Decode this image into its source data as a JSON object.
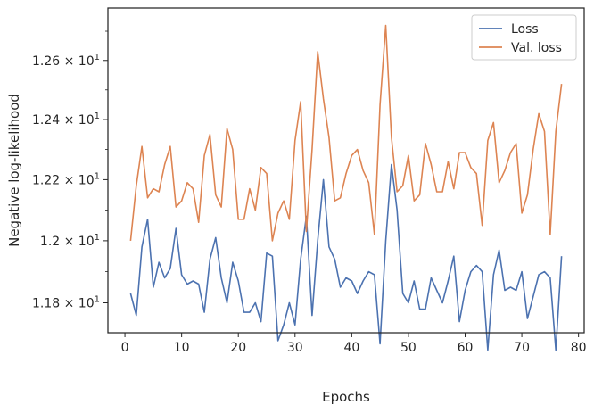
{
  "chart_data": {
    "type": "line",
    "xlabel": "Epochs",
    "ylabel": "Negative log-likelihood",
    "xlim": [
      -3,
      81
    ],
    "ylim": [
      11.705,
      12.78
    ],
    "yscale": "log",
    "grid": false,
    "legend_position": "top-right",
    "x_ticks": [
      0,
      10,
      20,
      30,
      40,
      50,
      60,
      70,
      80
    ],
    "x_tick_labels": [
      "0",
      "10",
      "20",
      "30",
      "40",
      "50",
      "60",
      "70",
      "80"
    ],
    "y_ticks": [
      11.8,
      12.0,
      12.2,
      12.4,
      12.6
    ],
    "y_tick_labels": [
      {
        "mant": "1.18",
        "base": "10",
        "exp": "1"
      },
      {
        "mant": "1.2",
        "base": "10",
        "exp": "1"
      },
      {
        "mant": "1.22",
        "base": "10",
        "exp": "1"
      },
      {
        "mant": "1.24",
        "base": "10",
        "exp": "1"
      },
      {
        "mant": "1.26",
        "base": "10",
        "exp": "1"
      }
    ],
    "x": [
      1,
      2,
      3,
      4,
      5,
      6,
      7,
      8,
      9,
      10,
      11,
      12,
      13,
      14,
      15,
      16,
      17,
      18,
      19,
      20,
      21,
      22,
      23,
      24,
      25,
      26,
      27,
      28,
      29,
      30,
      31,
      32,
      33,
      34,
      35,
      36,
      37,
      38,
      39,
      40,
      41,
      42,
      43,
      44,
      45,
      46,
      47,
      48,
      49,
      50,
      51,
      52,
      53,
      54,
      55,
      56,
      57,
      58,
      59,
      60,
      61,
      62,
      63,
      64,
      65,
      66,
      67,
      68,
      69,
      70,
      71,
      72,
      73,
      74,
      75,
      76,
      77
    ],
    "series": [
      {
        "name": "Loss",
        "color": "#4c72b0",
        "values": [
          11.83,
          11.76,
          11.98,
          12.07,
          11.85,
          11.93,
          11.88,
          11.91,
          12.04,
          11.89,
          11.86,
          11.87,
          11.86,
          11.77,
          11.94,
          12.01,
          11.88,
          11.8,
          11.93,
          11.87,
          11.77,
          11.77,
          11.8,
          11.74,
          11.96,
          11.95,
          11.68,
          11.73,
          11.8,
          11.73,
          11.94,
          12.08,
          11.76,
          12.0,
          12.2,
          11.98,
          11.94,
          11.85,
          11.88,
          11.87,
          11.83,
          11.87,
          11.9,
          11.89,
          11.67,
          12.0,
          12.25,
          12.1,
          11.83,
          11.8,
          11.87,
          11.78,
          11.78,
          11.88,
          11.84,
          11.8,
          11.87,
          11.95,
          11.74,
          11.84,
          11.9,
          11.92,
          11.9,
          11.65,
          11.89,
          11.97,
          11.84,
          11.85,
          11.84,
          11.9,
          11.75,
          11.82,
          11.89,
          11.9,
          11.88,
          11.65,
          11.95
        ]
      },
      {
        "name": "Val. loss",
        "color": "#dd8452",
        "values": [
          12.0,
          12.18,
          12.31,
          12.14,
          12.17,
          12.16,
          12.25,
          12.31,
          12.11,
          12.13,
          12.19,
          12.17,
          12.06,
          12.28,
          12.35,
          12.15,
          12.11,
          12.37,
          12.3,
          12.07,
          12.07,
          12.17,
          12.1,
          12.24,
          12.22,
          12.0,
          12.09,
          12.13,
          12.07,
          12.33,
          12.46,
          12.03,
          12.3,
          12.63,
          12.47,
          12.34,
          12.13,
          12.14,
          12.22,
          12.28,
          12.3,
          12.23,
          12.19,
          12.02,
          12.45,
          12.72,
          12.34,
          12.16,
          12.18,
          12.28,
          12.13,
          12.15,
          12.32,
          12.25,
          12.16,
          12.16,
          12.26,
          12.17,
          12.29,
          12.29,
          12.24,
          12.22,
          12.05,
          12.33,
          12.39,
          12.19,
          12.23,
          12.29,
          12.32,
          12.09,
          12.15,
          12.3,
          12.42,
          12.36,
          12.02,
          12.36,
          12.52
        ]
      }
    ]
  }
}
